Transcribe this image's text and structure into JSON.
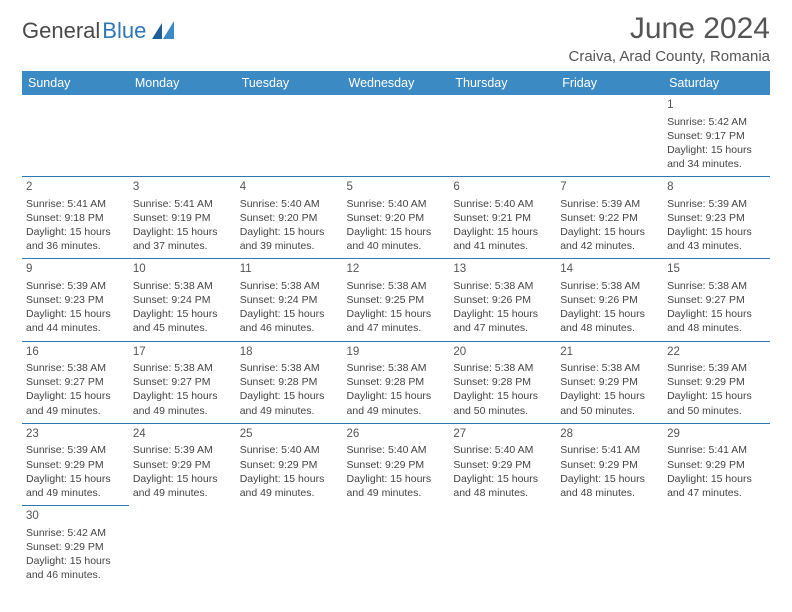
{
  "logo": {
    "part1": "General",
    "part2": "Blue"
  },
  "title": "June 2024",
  "location": "Craiva, Arad County, Romania",
  "colors": {
    "header_bg": "#3b8ac4",
    "border": "#2f77b5",
    "logo_blue": "#2f77b5",
    "text": "#444444"
  },
  "weekdays": [
    "Sunday",
    "Monday",
    "Tuesday",
    "Wednesday",
    "Thursday",
    "Friday",
    "Saturday"
  ],
  "weeks": [
    [
      null,
      null,
      null,
      null,
      null,
      null,
      {
        "n": "1",
        "sr": "Sunrise: 5:42 AM",
        "ss": "Sunset: 9:17 PM",
        "dl": "Daylight: 15 hours and 34 minutes."
      }
    ],
    [
      {
        "n": "2",
        "sr": "Sunrise: 5:41 AM",
        "ss": "Sunset: 9:18 PM",
        "dl": "Daylight: 15 hours and 36 minutes."
      },
      {
        "n": "3",
        "sr": "Sunrise: 5:41 AM",
        "ss": "Sunset: 9:19 PM",
        "dl": "Daylight: 15 hours and 37 minutes."
      },
      {
        "n": "4",
        "sr": "Sunrise: 5:40 AM",
        "ss": "Sunset: 9:20 PM",
        "dl": "Daylight: 15 hours and 39 minutes."
      },
      {
        "n": "5",
        "sr": "Sunrise: 5:40 AM",
        "ss": "Sunset: 9:20 PM",
        "dl": "Daylight: 15 hours and 40 minutes."
      },
      {
        "n": "6",
        "sr": "Sunrise: 5:40 AM",
        "ss": "Sunset: 9:21 PM",
        "dl": "Daylight: 15 hours and 41 minutes."
      },
      {
        "n": "7",
        "sr": "Sunrise: 5:39 AM",
        "ss": "Sunset: 9:22 PM",
        "dl": "Daylight: 15 hours and 42 minutes."
      },
      {
        "n": "8",
        "sr": "Sunrise: 5:39 AM",
        "ss": "Sunset: 9:23 PM",
        "dl": "Daylight: 15 hours and 43 minutes."
      }
    ],
    [
      {
        "n": "9",
        "sr": "Sunrise: 5:39 AM",
        "ss": "Sunset: 9:23 PM",
        "dl": "Daylight: 15 hours and 44 minutes."
      },
      {
        "n": "10",
        "sr": "Sunrise: 5:38 AM",
        "ss": "Sunset: 9:24 PM",
        "dl": "Daylight: 15 hours and 45 minutes."
      },
      {
        "n": "11",
        "sr": "Sunrise: 5:38 AM",
        "ss": "Sunset: 9:24 PM",
        "dl": "Daylight: 15 hours and 46 minutes."
      },
      {
        "n": "12",
        "sr": "Sunrise: 5:38 AM",
        "ss": "Sunset: 9:25 PM",
        "dl": "Daylight: 15 hours and 47 minutes."
      },
      {
        "n": "13",
        "sr": "Sunrise: 5:38 AM",
        "ss": "Sunset: 9:26 PM",
        "dl": "Daylight: 15 hours and 47 minutes."
      },
      {
        "n": "14",
        "sr": "Sunrise: 5:38 AM",
        "ss": "Sunset: 9:26 PM",
        "dl": "Daylight: 15 hours and 48 minutes."
      },
      {
        "n": "15",
        "sr": "Sunrise: 5:38 AM",
        "ss": "Sunset: 9:27 PM",
        "dl": "Daylight: 15 hours and 48 minutes."
      }
    ],
    [
      {
        "n": "16",
        "sr": "Sunrise: 5:38 AM",
        "ss": "Sunset: 9:27 PM",
        "dl": "Daylight: 15 hours and 49 minutes."
      },
      {
        "n": "17",
        "sr": "Sunrise: 5:38 AM",
        "ss": "Sunset: 9:27 PM",
        "dl": "Daylight: 15 hours and 49 minutes."
      },
      {
        "n": "18",
        "sr": "Sunrise: 5:38 AM",
        "ss": "Sunset: 9:28 PM",
        "dl": "Daylight: 15 hours and 49 minutes."
      },
      {
        "n": "19",
        "sr": "Sunrise: 5:38 AM",
        "ss": "Sunset: 9:28 PM",
        "dl": "Daylight: 15 hours and 49 minutes."
      },
      {
        "n": "20",
        "sr": "Sunrise: 5:38 AM",
        "ss": "Sunset: 9:28 PM",
        "dl": "Daylight: 15 hours and 50 minutes."
      },
      {
        "n": "21",
        "sr": "Sunrise: 5:38 AM",
        "ss": "Sunset: 9:29 PM",
        "dl": "Daylight: 15 hours and 50 minutes."
      },
      {
        "n": "22",
        "sr": "Sunrise: 5:39 AM",
        "ss": "Sunset: 9:29 PM",
        "dl": "Daylight: 15 hours and 50 minutes."
      }
    ],
    [
      {
        "n": "23",
        "sr": "Sunrise: 5:39 AM",
        "ss": "Sunset: 9:29 PM",
        "dl": "Daylight: 15 hours and 49 minutes."
      },
      {
        "n": "24",
        "sr": "Sunrise: 5:39 AM",
        "ss": "Sunset: 9:29 PM",
        "dl": "Daylight: 15 hours and 49 minutes."
      },
      {
        "n": "25",
        "sr": "Sunrise: 5:40 AM",
        "ss": "Sunset: 9:29 PM",
        "dl": "Daylight: 15 hours and 49 minutes."
      },
      {
        "n": "26",
        "sr": "Sunrise: 5:40 AM",
        "ss": "Sunset: 9:29 PM",
        "dl": "Daylight: 15 hours and 49 minutes."
      },
      {
        "n": "27",
        "sr": "Sunrise: 5:40 AM",
        "ss": "Sunset: 9:29 PM",
        "dl": "Daylight: 15 hours and 48 minutes."
      },
      {
        "n": "28",
        "sr": "Sunrise: 5:41 AM",
        "ss": "Sunset: 9:29 PM",
        "dl": "Daylight: 15 hours and 48 minutes."
      },
      {
        "n": "29",
        "sr": "Sunrise: 5:41 AM",
        "ss": "Sunset: 9:29 PM",
        "dl": "Daylight: 15 hours and 47 minutes."
      }
    ],
    [
      {
        "n": "30",
        "sr": "Sunrise: 5:42 AM",
        "ss": "Sunset: 9:29 PM",
        "dl": "Daylight: 15 hours and 46 minutes."
      },
      null,
      null,
      null,
      null,
      null,
      null
    ]
  ]
}
